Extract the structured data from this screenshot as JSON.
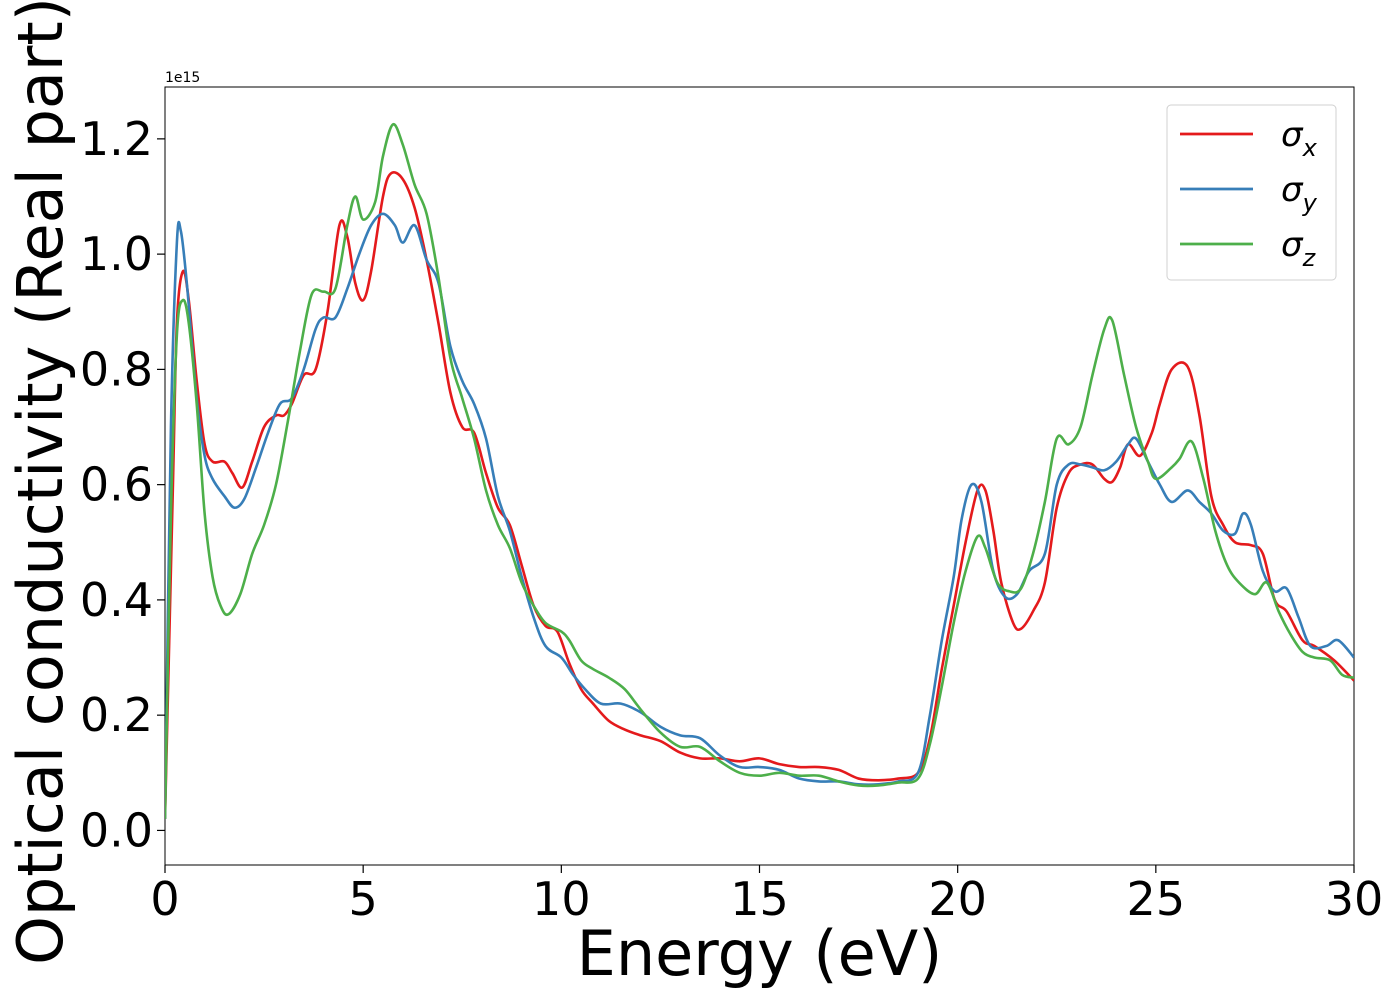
{
  "chart_data": {
    "type": "line",
    "xlabel": "Energy (eV)",
    "ylabel": "Optical conductivity (Real part)",
    "y_offset_label": "1e15",
    "xlim": [
      0,
      30
    ],
    "ylim": [
      -0.06,
      1.29
    ],
    "x_ticks": [
      0,
      5,
      10,
      15,
      20,
      25,
      30
    ],
    "x_tick_labels": [
      "0",
      "5",
      "10",
      "15",
      "20",
      "25",
      "30"
    ],
    "y_ticks": [
      0.0,
      0.2,
      0.4,
      0.6,
      0.8,
      1.0,
      1.2
    ],
    "y_tick_labels": [
      "0.0",
      "0.2",
      "0.4",
      "0.6",
      "0.8",
      "1.0",
      "1.2"
    ],
    "grid": false,
    "legend_position": "top-right",
    "series": [
      {
        "name": "σ",
        "subscript": "x",
        "color": "#e41a1c",
        "points": [
          [
            0,
            0.02
          ],
          [
            0.2,
            0.6
          ],
          [
            0.3,
            0.88
          ],
          [
            0.45,
            0.97
          ],
          [
            0.6,
            0.92
          ],
          [
            0.8,
            0.78
          ],
          [
            1.0,
            0.67
          ],
          [
            1.2,
            0.64
          ],
          [
            1.5,
            0.64
          ],
          [
            1.7,
            0.62
          ],
          [
            1.95,
            0.595
          ],
          [
            2.2,
            0.64
          ],
          [
            2.5,
            0.7
          ],
          [
            2.8,
            0.72
          ],
          [
            3.0,
            0.72
          ],
          [
            3.2,
            0.74
          ],
          [
            3.5,
            0.79
          ],
          [
            3.8,
            0.8
          ],
          [
            4.1,
            0.9
          ],
          [
            4.4,
            1.05
          ],
          [
            4.6,
            1.03
          ],
          [
            4.8,
            0.95
          ],
          [
            5.0,
            0.92
          ],
          [
            5.2,
            0.97
          ],
          [
            5.5,
            1.1
          ],
          [
            5.7,
            1.14
          ],
          [
            6.0,
            1.13
          ],
          [
            6.3,
            1.08
          ],
          [
            6.6,
            0.99
          ],
          [
            6.9,
            0.88
          ],
          [
            7.2,
            0.76
          ],
          [
            7.5,
            0.7
          ],
          [
            7.8,
            0.69
          ],
          [
            8.1,
            0.62
          ],
          [
            8.4,
            0.56
          ],
          [
            8.7,
            0.53
          ],
          [
            9.0,
            0.46
          ],
          [
            9.3,
            0.39
          ],
          [
            9.6,
            0.355
          ],
          [
            9.9,
            0.345
          ],
          [
            10.2,
            0.29
          ],
          [
            10.5,
            0.245
          ],
          [
            10.8,
            0.22
          ],
          [
            11.2,
            0.19
          ],
          [
            11.6,
            0.175
          ],
          [
            12.0,
            0.165
          ],
          [
            12.5,
            0.155
          ],
          [
            13.0,
            0.135
          ],
          [
            13.5,
            0.125
          ],
          [
            14.0,
            0.125
          ],
          [
            14.5,
            0.12
          ],
          [
            15.0,
            0.125
          ],
          [
            15.5,
            0.115
          ],
          [
            16.0,
            0.11
          ],
          [
            16.5,
            0.11
          ],
          [
            17.0,
            0.105
          ],
          [
            17.5,
            0.09
          ],
          [
            18.0,
            0.087
          ],
          [
            18.5,
            0.09
          ],
          [
            19.0,
            0.1
          ],
          [
            19.3,
            0.16
          ],
          [
            19.6,
            0.28
          ],
          [
            19.9,
            0.39
          ],
          [
            20.2,
            0.5
          ],
          [
            20.5,
            0.59
          ],
          [
            20.7,
            0.59
          ],
          [
            20.9,
            0.52
          ],
          [
            21.1,
            0.43
          ],
          [
            21.4,
            0.36
          ],
          [
            21.6,
            0.35
          ],
          [
            21.9,
            0.38
          ],
          [
            22.2,
            0.43
          ],
          [
            22.5,
            0.56
          ],
          [
            22.8,
            0.62
          ],
          [
            23.1,
            0.635
          ],
          [
            23.4,
            0.635
          ],
          [
            23.7,
            0.61
          ],
          [
            23.9,
            0.605
          ],
          [
            24.1,
            0.63
          ],
          [
            24.3,
            0.67
          ],
          [
            24.6,
            0.65
          ],
          [
            24.9,
            0.69
          ],
          [
            25.1,
            0.74
          ],
          [
            25.4,
            0.8
          ],
          [
            25.8,
            0.805
          ],
          [
            26.1,
            0.72
          ],
          [
            26.4,
            0.58
          ],
          [
            26.7,
            0.53
          ],
          [
            27.0,
            0.5
          ],
          [
            27.4,
            0.495
          ],
          [
            27.7,
            0.48
          ],
          [
            28.0,
            0.4
          ],
          [
            28.3,
            0.38
          ],
          [
            28.7,
            0.33
          ],
          [
            29.0,
            0.32
          ],
          [
            29.5,
            0.295
          ],
          [
            30.0,
            0.26
          ]
        ]
      },
      {
        "name": "σ",
        "subscript": "y",
        "color": "#377eb8",
        "points": [
          [
            0,
            0.02
          ],
          [
            0.15,
            0.7
          ],
          [
            0.3,
            1.02
          ],
          [
            0.4,
            1.04
          ],
          [
            0.55,
            0.95
          ],
          [
            0.8,
            0.75
          ],
          [
            1.0,
            0.65
          ],
          [
            1.2,
            0.61
          ],
          [
            1.5,
            0.58
          ],
          [
            1.75,
            0.56
          ],
          [
            2.0,
            0.575
          ],
          [
            2.3,
            0.63
          ],
          [
            2.6,
            0.69
          ],
          [
            2.9,
            0.74
          ],
          [
            3.2,
            0.75
          ],
          [
            3.5,
            0.8
          ],
          [
            3.8,
            0.87
          ],
          [
            4.0,
            0.89
          ],
          [
            4.3,
            0.89
          ],
          [
            4.6,
            0.94
          ],
          [
            4.9,
            1.0
          ],
          [
            5.2,
            1.05
          ],
          [
            5.5,
            1.07
          ],
          [
            5.8,
            1.05
          ],
          [
            6.0,
            1.02
          ],
          [
            6.3,
            1.05
          ],
          [
            6.6,
            0.99
          ],
          [
            6.9,
            0.95
          ],
          [
            7.2,
            0.84
          ],
          [
            7.5,
            0.78
          ],
          [
            7.8,
            0.74
          ],
          [
            8.1,
            0.68
          ],
          [
            8.4,
            0.58
          ],
          [
            8.7,
            0.52
          ],
          [
            9.0,
            0.44
          ],
          [
            9.3,
            0.37
          ],
          [
            9.6,
            0.32
          ],
          [
            10.0,
            0.3
          ],
          [
            10.3,
            0.27
          ],
          [
            10.6,
            0.245
          ],
          [
            11.0,
            0.22
          ],
          [
            11.5,
            0.22
          ],
          [
            12.0,
            0.205
          ],
          [
            12.5,
            0.18
          ],
          [
            13.0,
            0.165
          ],
          [
            13.5,
            0.16
          ],
          [
            14.0,
            0.13
          ],
          [
            14.5,
            0.11
          ],
          [
            15.0,
            0.11
          ],
          [
            15.5,
            0.105
          ],
          [
            16.0,
            0.09
          ],
          [
            16.5,
            0.085
          ],
          [
            17.0,
            0.085
          ],
          [
            17.5,
            0.08
          ],
          [
            18.0,
            0.08
          ],
          [
            18.5,
            0.085
          ],
          [
            19.0,
            0.1
          ],
          [
            19.3,
            0.2
          ],
          [
            19.6,
            0.33
          ],
          [
            19.9,
            0.44
          ],
          [
            20.1,
            0.54
          ],
          [
            20.35,
            0.6
          ],
          [
            20.6,
            0.57
          ],
          [
            20.9,
            0.45
          ],
          [
            21.2,
            0.405
          ],
          [
            21.5,
            0.41
          ],
          [
            21.8,
            0.45
          ],
          [
            22.2,
            0.48
          ],
          [
            22.5,
            0.6
          ],
          [
            22.8,
            0.635
          ],
          [
            23.1,
            0.635
          ],
          [
            23.4,
            0.63
          ],
          [
            23.7,
            0.625
          ],
          [
            24.0,
            0.64
          ],
          [
            24.3,
            0.67
          ],
          [
            24.5,
            0.68
          ],
          [
            24.8,
            0.64
          ],
          [
            25.1,
            0.6
          ],
          [
            25.4,
            0.57
          ],
          [
            25.8,
            0.59
          ],
          [
            26.1,
            0.57
          ],
          [
            26.4,
            0.55
          ],
          [
            26.7,
            0.52
          ],
          [
            27.0,
            0.515
          ],
          [
            27.2,
            0.55
          ],
          [
            27.4,
            0.53
          ],
          [
            27.7,
            0.45
          ],
          [
            28.0,
            0.415
          ],
          [
            28.3,
            0.42
          ],
          [
            28.6,
            0.37
          ],
          [
            28.9,
            0.32
          ],
          [
            29.3,
            0.32
          ],
          [
            29.6,
            0.33
          ],
          [
            30.0,
            0.3
          ]
        ]
      },
      {
        "name": "σ",
        "subscript": "z",
        "color": "#4daf4a",
        "points": [
          [
            0,
            0.02
          ],
          [
            0.15,
            0.55
          ],
          [
            0.3,
            0.86
          ],
          [
            0.45,
            0.92
          ],
          [
            0.6,
            0.88
          ],
          [
            0.8,
            0.74
          ],
          [
            1.0,
            0.55
          ],
          [
            1.2,
            0.44
          ],
          [
            1.4,
            0.39
          ],
          [
            1.6,
            0.375
          ],
          [
            1.9,
            0.41
          ],
          [
            2.2,
            0.48
          ],
          [
            2.5,
            0.53
          ],
          [
            2.8,
            0.6
          ],
          [
            3.1,
            0.71
          ],
          [
            3.4,
            0.83
          ],
          [
            3.7,
            0.93
          ],
          [
            4.0,
            0.935
          ],
          [
            4.3,
            0.94
          ],
          [
            4.6,
            1.05
          ],
          [
            4.8,
            1.1
          ],
          [
            5.0,
            1.06
          ],
          [
            5.3,
            1.09
          ],
          [
            5.5,
            1.17
          ],
          [
            5.75,
            1.225
          ],
          [
            6.0,
            1.19
          ],
          [
            6.3,
            1.12
          ],
          [
            6.6,
            1.07
          ],
          [
            6.9,
            0.96
          ],
          [
            7.2,
            0.82
          ],
          [
            7.5,
            0.75
          ],
          [
            7.8,
            0.68
          ],
          [
            8.1,
            0.59
          ],
          [
            8.4,
            0.53
          ],
          [
            8.7,
            0.49
          ],
          [
            9.0,
            0.43
          ],
          [
            9.3,
            0.39
          ],
          [
            9.6,
            0.36
          ],
          [
            10.0,
            0.345
          ],
          [
            10.2,
            0.33
          ],
          [
            10.5,
            0.295
          ],
          [
            10.8,
            0.28
          ],
          [
            11.2,
            0.265
          ],
          [
            11.6,
            0.245
          ],
          [
            12.0,
            0.21
          ],
          [
            12.5,
            0.17
          ],
          [
            13.0,
            0.145
          ],
          [
            13.5,
            0.145
          ],
          [
            14.0,
            0.12
          ],
          [
            14.5,
            0.1
          ],
          [
            15.0,
            0.095
          ],
          [
            15.5,
            0.1
          ],
          [
            16.0,
            0.095
          ],
          [
            16.5,
            0.095
          ],
          [
            17.0,
            0.085
          ],
          [
            17.5,
            0.078
          ],
          [
            18.0,
            0.078
          ],
          [
            18.5,
            0.083
          ],
          [
            19.0,
            0.09
          ],
          [
            19.3,
            0.15
          ],
          [
            19.6,
            0.25
          ],
          [
            19.9,
            0.36
          ],
          [
            20.2,
            0.45
          ],
          [
            20.5,
            0.51
          ],
          [
            20.7,
            0.49
          ],
          [
            21.0,
            0.43
          ],
          [
            21.3,
            0.415
          ],
          [
            21.6,
            0.42
          ],
          [
            21.9,
            0.48
          ],
          [
            22.2,
            0.57
          ],
          [
            22.5,
            0.68
          ],
          [
            22.8,
            0.67
          ],
          [
            23.1,
            0.7
          ],
          [
            23.4,
            0.79
          ],
          [
            23.7,
            0.87
          ],
          [
            23.9,
            0.885
          ],
          [
            24.2,
            0.79
          ],
          [
            24.5,
            0.7
          ],
          [
            24.8,
            0.64
          ],
          [
            25.0,
            0.61
          ],
          [
            25.4,
            0.63
          ],
          [
            25.6,
            0.645
          ],
          [
            25.9,
            0.675
          ],
          [
            26.2,
            0.61
          ],
          [
            26.5,
            0.52
          ],
          [
            26.8,
            0.46
          ],
          [
            27.1,
            0.43
          ],
          [
            27.5,
            0.41
          ],
          [
            27.8,
            0.43
          ],
          [
            28.1,
            0.38
          ],
          [
            28.4,
            0.34
          ],
          [
            28.7,
            0.31
          ],
          [
            29.0,
            0.3
          ],
          [
            29.4,
            0.295
          ],
          [
            29.7,
            0.27
          ],
          [
            30.0,
            0.265
          ]
        ]
      }
    ]
  }
}
